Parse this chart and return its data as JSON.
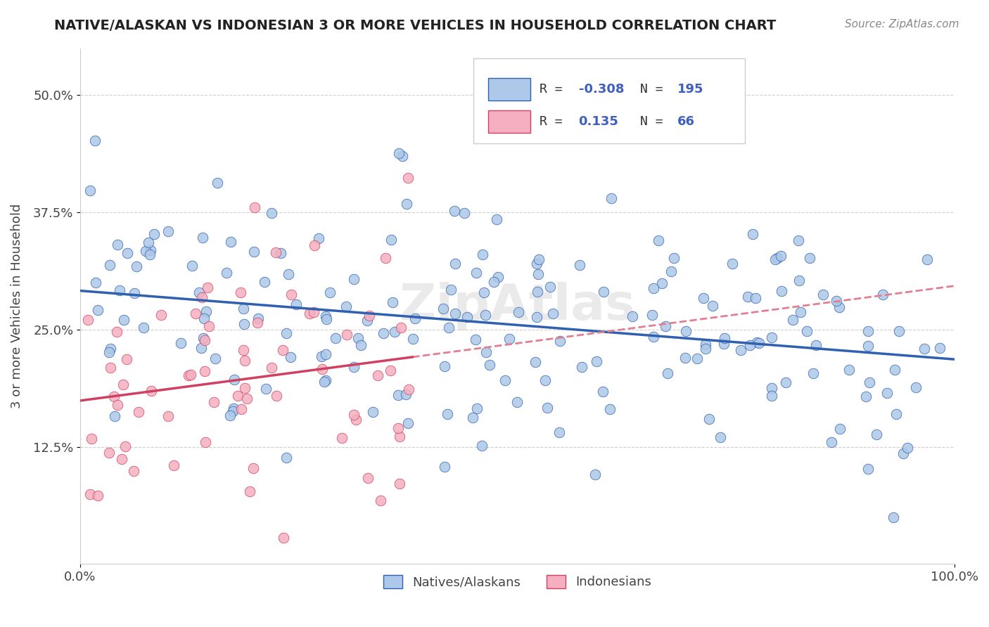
{
  "title": "NATIVE/ALASKAN VS INDONESIAN 3 OR MORE VEHICLES IN HOUSEHOLD CORRELATION CHART",
  "source": "Source: ZipAtlas.com",
  "ylabel": "3 or more Vehicles in Household",
  "xlim": [
    0,
    100
  ],
  "ylim": [
    0,
    55
  ],
  "xtick_labels": [
    "0.0%",
    "100.0%"
  ],
  "ytick_labels": [
    "12.5%",
    "25.0%",
    "37.5%",
    "50.0%"
  ],
  "ytick_vals": [
    12.5,
    25.0,
    37.5,
    50.0
  ],
  "legend1_label": "Natives/Alaskans",
  "legend2_label": "Indonesians",
  "blue_color": "#adc8e8",
  "pink_color": "#f5afc0",
  "blue_line_color": "#3060b0",
  "pink_line_color": "#d04060",
  "pink_dash_color": "#e08090",
  "R1": -0.308,
  "R2": 0.135,
  "N1": 195,
  "N2": 66,
  "blue_intercept": 28.5,
  "blue_slope": -0.055,
  "pink_intercept": 18.0,
  "pink_slope": 0.2,
  "watermark": "ZipAtlas",
  "background_color": "#ffffff",
  "grid_color": "#d0d0d0"
}
